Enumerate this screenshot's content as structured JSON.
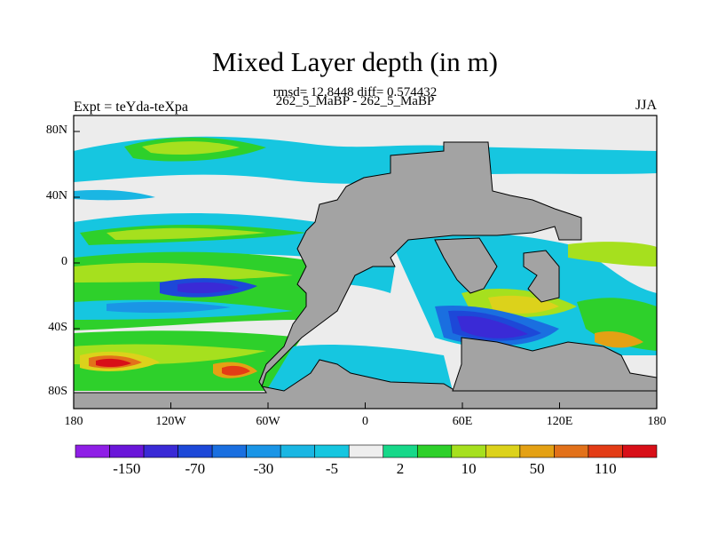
{
  "title": "Mixed Layer depth (in m)",
  "subtitle_stats": "rmsd= 12.8448 diff= 0.574432",
  "subtitle_runs": "262_5_MaBP - 262_5_MaBP",
  "left_label": "Expt = teYda-teXpa",
  "right_label": "JJA",
  "lat_ticks": [
    "80N",
    "40N",
    "0",
    "40S",
    "80S"
  ],
  "lon_ticks": [
    "180",
    "120W",
    "60W",
    "0",
    "60E",
    "120E",
    "180"
  ],
  "colorbar": {
    "colors": [
      "#8f1fe6",
      "#6a16d9",
      "#3a2ad6",
      "#1d48d8",
      "#1a6fe0",
      "#1a95e6",
      "#1ab6e3",
      "#16c6e0",
      "#eeeeee",
      "#17d889",
      "#2ed02b",
      "#a6e01e",
      "#dcd21b",
      "#e4a114",
      "#e2711a",
      "#e33c16",
      "#d80f18"
    ],
    "labels": [
      "-150",
      "-70",
      "-30",
      "-5",
      "2",
      "10",
      "50",
      "110"
    ]
  },
  "map_colors": {
    "land": "#a3a3a3",
    "background": "#ececec"
  }
}
